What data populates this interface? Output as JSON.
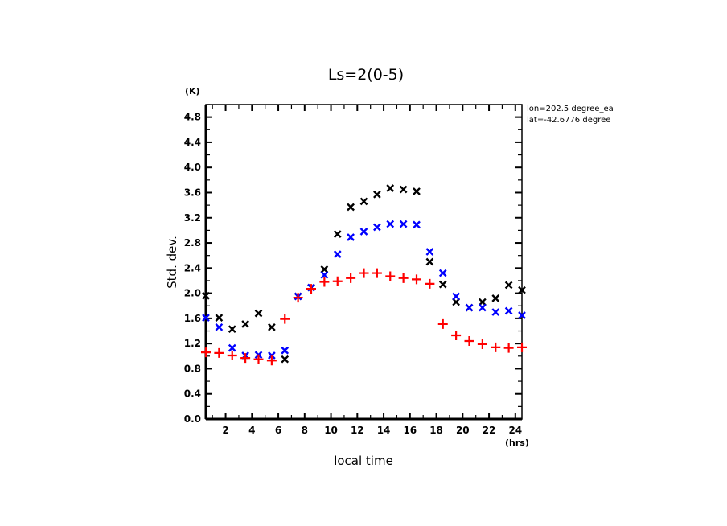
{
  "chart_data": {
    "type": "scatter",
    "title": "Ls=2(0-5)",
    "xlabel": "local time",
    "xunit": "(hrs)",
    "ylabel": "Std. dev.",
    "yunit": "(K)",
    "xlim": [
      0.5,
      24.5
    ],
    "ylim": [
      0.0,
      5.0
    ],
    "xticks": [
      2,
      4,
      6,
      8,
      10,
      12,
      14,
      16,
      18,
      20,
      22,
      24
    ],
    "xtick_labels": [
      "2",
      "4",
      "6",
      "8",
      "10",
      "12",
      "14",
      "16",
      "18",
      "20",
      "22",
      "24"
    ],
    "yticks": [
      0.0,
      0.4,
      0.8,
      1.2,
      1.6,
      2.0,
      2.4,
      2.8,
      3.2,
      3.6,
      4.0,
      4.4,
      4.8
    ],
    "ytick_labels": [
      "0.0",
      "0.4",
      "0.8",
      "1.2",
      "1.6",
      "2.0",
      "2.4",
      "2.8",
      "3.2",
      "3.6",
      "4.0",
      "4.4",
      "4.8"
    ],
    "annotations": [
      "lon=202.5 degree_ea",
      "lat=-42.6776 degree"
    ],
    "grid": false,
    "x": [
      0.5,
      1.5,
      2.5,
      3.5,
      4.5,
      5.5,
      6.5,
      7.5,
      8.5,
      9.5,
      10.5,
      11.5,
      12.5,
      13.5,
      14.5,
      15.5,
      16.5,
      17.5,
      18.5,
      19.5,
      20.5,
      21.5,
      22.5,
      23.5,
      24.5
    ],
    "series": [
      {
        "name": "black",
        "marker": "x",
        "color": "#000000",
        "values": [
          1.96,
          1.61,
          1.43,
          1.51,
          1.68,
          1.46,
          0.95,
          1.95,
          2.09,
          2.38,
          2.94,
          3.37,
          3.46,
          3.57,
          3.67,
          3.65,
          3.62,
          2.5,
          2.14,
          1.86,
          1.77,
          1.86,
          1.92,
          2.13,
          2.05
        ]
      },
      {
        "name": "blue",
        "marker": "x",
        "color": "#0000ff",
        "values": [
          1.61,
          1.46,
          1.13,
          1.01,
          1.02,
          1.01,
          1.09,
          1.95,
          2.09,
          2.29,
          2.62,
          2.89,
          2.98,
          3.05,
          3.1,
          3.1,
          3.09,
          2.66,
          2.32,
          1.95,
          1.77,
          1.77,
          1.7,
          1.72,
          1.65
        ]
      },
      {
        "name": "red",
        "marker": "+",
        "color": "#ff0000",
        "values": [
          1.06,
          1.05,
          1.01,
          0.97,
          0.95,
          0.93,
          1.59,
          1.93,
          2.07,
          2.18,
          2.19,
          2.24,
          2.32,
          2.32,
          2.27,
          2.24,
          2.22,
          2.15,
          1.51,
          1.33,
          1.24,
          1.19,
          1.14,
          1.13,
          1.14
        ]
      }
    ]
  }
}
